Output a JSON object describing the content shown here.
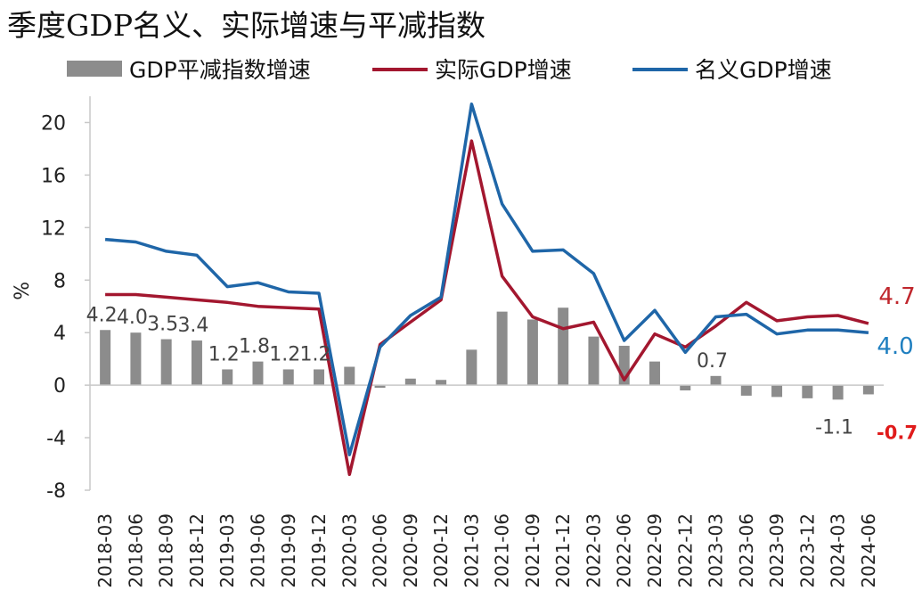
{
  "chart_data": {
    "type": "bar",
    "title": "季度GDP名义、实际增速与平减指数",
    "ylabel": "%",
    "ylim": [
      -8,
      22
    ],
    "yticks": [
      -8,
      -4,
      0,
      4,
      8,
      12,
      16,
      20
    ],
    "categories": [
      "2018-03",
      "2018-06",
      "2018-09",
      "2018-12",
      "2019-03",
      "2019-06",
      "2019-09",
      "2019-12",
      "2020-03",
      "2020-06",
      "2020-09",
      "2020-12",
      "2021-03",
      "2021-06",
      "2021-09",
      "2021-12",
      "2022-03",
      "2022-06",
      "2022-09",
      "2022-12",
      "2023-03",
      "2023-06",
      "2023-09",
      "2023-12",
      "2024-03",
      "2024-06"
    ],
    "series": [
      {
        "name": "GDP平减指数增速",
        "type": "bar",
        "color": "#8c8c8c",
        "values": [
          4.2,
          4.0,
          3.5,
          3.4,
          1.2,
          1.8,
          1.2,
          1.2,
          1.4,
          -0.2,
          0.5,
          0.4,
          2.7,
          5.6,
          5.0,
          5.9,
          3.7,
          3.0,
          1.8,
          -0.4,
          0.7,
          -0.8,
          -0.9,
          -1.0,
          -1.1,
          -0.7
        ]
      },
      {
        "name": "实际GDP增速",
        "type": "line",
        "color": "#a3172f",
        "values": [
          6.9,
          6.9,
          6.7,
          6.5,
          6.3,
          6.0,
          5.9,
          5.8,
          -6.8,
          3.1,
          4.8,
          6.5,
          18.6,
          8.3,
          5.2,
          4.3,
          4.8,
          0.4,
          3.9,
          2.9,
          4.5,
          6.3,
          4.9,
          5.2,
          5.3,
          4.7
        ]
      },
      {
        "name": "名义GDP增速",
        "type": "line",
        "color": "#1f66a8",
        "values": [
          11.1,
          10.9,
          10.2,
          9.9,
          7.5,
          7.8,
          7.1,
          7.0,
          -5.3,
          2.9,
          5.3,
          6.7,
          21.4,
          13.8,
          10.2,
          10.3,
          8.5,
          3.4,
          5.7,
          2.5,
          5.2,
          5.4,
          3.9,
          4.2,
          4.2,
          4.0
        ]
      }
    ],
    "bar_labels": [
      {
        "index": 0,
        "text": "4.2"
      },
      {
        "index": 1,
        "text": "4.0"
      },
      {
        "index": 2,
        "text": "3.5"
      },
      {
        "index": 3,
        "text": "3.4"
      },
      {
        "index": 4,
        "text": "1.2"
      },
      {
        "index": 5,
        "text": "1.8"
      },
      {
        "index": 6,
        "text": "1.2"
      },
      {
        "index": 7,
        "text": "1.2"
      },
      {
        "index": 20,
        "text": "0.7"
      },
      {
        "index": 24,
        "text": "-1.1"
      }
    ],
    "end_labels": [
      {
        "text": "4.7",
        "color": "#c0272d",
        "bold": false
      },
      {
        "text": "4.0",
        "color": "#1f7fc0",
        "bold": false
      },
      {
        "text": "-0.7",
        "color": "#e01b1b",
        "bold": true
      }
    ],
    "legend_position": "top",
    "grid": false
  }
}
